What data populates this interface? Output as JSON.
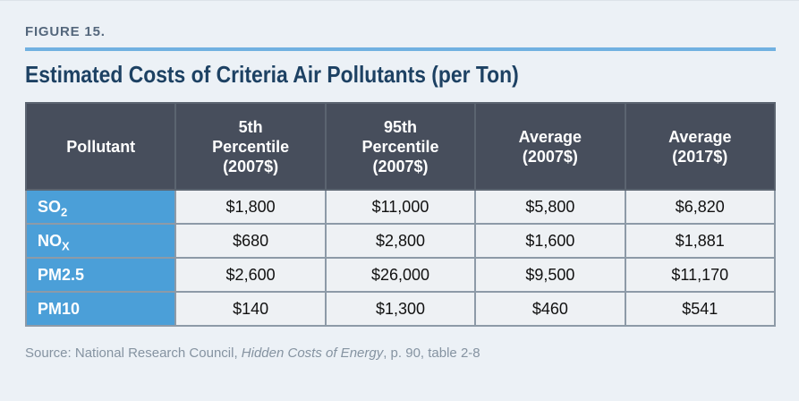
{
  "figure": {
    "label": "FIGURE 15.",
    "title": "Estimated Costs of Criteria Air Pollutants (per Ton)"
  },
  "source": {
    "prefix": "Source: National Research Council, ",
    "work_title": "Hidden Costs of Energy",
    "suffix": ", p. 90, table 2-8"
  },
  "colors": {
    "page_background": "#ecf1f6",
    "accent_rule_blue": "#71b1e1",
    "figure_label_text": "#54677c",
    "title_text": "#1d4163",
    "table_header_background": "#474e5c",
    "table_header_text": "#ffffff",
    "pollutant_cell_background": "#4b9fd8",
    "pollutant_cell_text": "#ffffff",
    "value_cell_background": "#eef1f4",
    "value_cell_text": "#111111",
    "table_border": "#8d9aa7",
    "source_text": "#8593a1"
  },
  "chart_data": {
    "type": "table",
    "title": "Estimated Costs of Criteria Air Pollutants (per Ton)",
    "columns": [
      "Pollutant",
      "5th Percentile (2007$)",
      "95th Percentile (2007$)",
      "Average (2007$)",
      "Average (2017$)"
    ],
    "header_display": {
      "col0": "Pollutant",
      "col1": "5th\nPercentile\n(2007$)",
      "col2": "95th\nPercentile\n(2007$)",
      "col3": "Average\n(2007$)",
      "col4": "Average\n(2017$)"
    },
    "rows": [
      {
        "label": {
          "base": "SO",
          "sub": "2"
        },
        "values": [
          "$1,800",
          "$11,000",
          "$5,800",
          "$6,820"
        ]
      },
      {
        "label": {
          "base": "NO",
          "sub": "X"
        },
        "values": [
          "$680",
          "$2,800",
          "$1,600",
          "$1,881"
        ]
      },
      {
        "label": {
          "base": "PM2.5",
          "sub": ""
        },
        "values": [
          "$2,600",
          "$26,000",
          "$9,500",
          "$11,170"
        ]
      },
      {
        "label": {
          "base": "PM10",
          "sub": ""
        },
        "values": [
          "$140",
          "$1,300",
          "$460",
          "$541"
        ]
      }
    ]
  }
}
